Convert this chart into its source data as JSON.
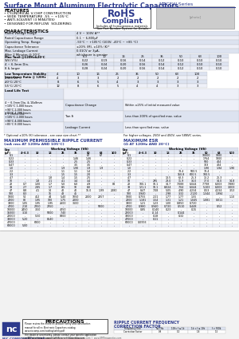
{
  "title_bold": "Surface Mount Aluminum Electrolytic Capacitors",
  "title_series": " NACEW Series",
  "bg_color": "#ffffff",
  "header_color": "#2d3a8c",
  "table_header_bg": "#c8d0e8",
  "border_color": "#999999",
  "features_title": "FEATURES",
  "features": [
    "• CYLINDRICAL V-CHIP CONSTRUCTION",
    "• WIDE TEMPERATURE -55 ~ +105°C",
    "• ANTI-SOLVENT (3 MINUTES)",
    "• DESIGNED FOR REFLOW  SOLDERING"
  ],
  "char_title": "CHARACTERISTICS",
  "char_rows": [
    [
      "Rated Voltage Range",
      "4 V ~ 100V A**"
    ],
    [
      "Rated Capacitance Range",
      "0.1 ~ 6,800μF"
    ],
    [
      "Operating Temp. Range",
      "-55°C ~ +105°C (100V: -40°C ~ +85 °C)"
    ],
    [
      "Capacitance Tolerance",
      "±20% (M), ±10% (K)*"
    ],
    [
      "Max. Leakage Current\nAfter 2 Minutes @ 20°C",
      "0.01CV or 3μA,\nwhichever is greater"
    ]
  ],
  "ripple_title": "MAXIMUM PERMISSIBLE RIPPLE CURRENT",
  "ripple_sub": "(mA rms AT 120Hz AND 105°C)",
  "esr_title": "MAXIMUM ESR",
  "esr_sub": "(Ω AT 120Hz AND 20°C)",
  "ripple_wv": [
    "4~6.3",
    "10",
    "16",
    "25",
    "35",
    "50",
    "63",
    "100"
  ],
  "esr_wv": [
    "4~6.3",
    "10",
    "16",
    "25",
    "35",
    "50",
    "63",
    "500"
  ],
  "ripple_data": [
    [
      "0.1",
      "-",
      "-",
      "-",
      "-",
      "-",
      "67",
      "67",
      "-"
    ],
    [
      "0.22",
      "-",
      "-",
      "-",
      "-",
      "1.46",
      "1.46",
      "-",
      "-"
    ],
    [
      "0.33",
      "-",
      "-",
      "-",
      "-",
      "2.5",
      "2.5",
      "-",
      "-"
    ],
    [
      "0.47",
      "-",
      "-",
      "-",
      "-",
      "3.5",
      "3.5",
      "-",
      "-"
    ],
    [
      "1.0",
      "-",
      "-",
      "-",
      "1.9",
      "1.90",
      "1.9",
      "1.9",
      "-"
    ],
    [
      "2.2",
      "-",
      "-",
      "-",
      "1.1",
      "1.1",
      "1.4",
      "-",
      "-"
    ],
    [
      "3.3",
      "-",
      "-",
      "-",
      "1.5",
      "1.5",
      "2.0",
      "-",
      "-"
    ],
    [
      "4.7",
      "-",
      "-",
      "1.8",
      "1.4",
      "1.5",
      "2.5",
      "-",
      "-"
    ],
    [
      "10",
      "-",
      "1.8",
      "2.1",
      "4.1",
      "3.4",
      "3.4",
      "-",
      "-"
    ],
    [
      "22",
      "0.7",
      "1.00",
      "1.7",
      "5.0",
      "6.0",
      "4.9",
      "-",
      "84"
    ],
    [
      "33",
      "2.7",
      "2.85",
      "1.7",
      "8.5",
      "10",
      "8.0",
      "-",
      "-"
    ],
    [
      "47",
      "8.8",
      "4.1",
      "14",
      "40",
      "40",
      "16.0",
      "1.99",
      "2080"
    ],
    [
      "100",
      "8.3",
      "-",
      "16",
      "48",
      "45",
      "-",
      "-",
      "-"
    ],
    [
      "1000",
      "54",
      "452",
      "44",
      "5.40",
      "1050",
      "2000",
      "2857",
      "-"
    ],
    [
      "2200",
      "80",
      "1.95",
      "100",
      "1.75",
      "2000",
      "-",
      "-",
      "-"
    ],
    [
      "3300",
      "1.05",
      "1.95",
      "1.95",
      "2600",
      "3600",
      "-",
      "-",
      "-"
    ],
    [
      "4700",
      "2.10",
      "2.350",
      "2350",
      "-",
      "-",
      "-",
      "5000",
      "-"
    ],
    [
      "10000",
      "2450",
      "3.50",
      "-",
      "4250",
      "-",
      "-",
      "-",
      "-"
    ],
    [
      "15000",
      "3.10",
      "-",
      "5000",
      "7.40",
      "-",
      "-",
      "-",
      "-"
    ],
    [
      "22000",
      "-",
      "5.50",
      "-",
      "8800",
      "-",
      "-",
      "-",
      "-"
    ],
    [
      "33000",
      "5.20",
      "-",
      "8640",
      "-",
      "-",
      "-",
      "-",
      "-"
    ],
    [
      "47000",
      "-",
      "6800",
      "-",
      "-",
      "-",
      "-",
      "-",
      "-"
    ],
    [
      "68000",
      "5.00",
      "-",
      "-",
      "-",
      "-",
      "-",
      "-",
      "-"
    ]
  ],
  "esr_data": [
    [
      "0.1",
      "-",
      "-",
      "-",
      "-",
      "-",
      "10000",
      "1000",
      "-"
    ],
    [
      "0.220.1",
      "-",
      "-",
      "-",
      "-",
      "-",
      "1764",
      "1000",
      "-"
    ],
    [
      "0.33",
      "-",
      "-",
      "-",
      "-",
      "-",
      "500",
      "404",
      "-"
    ],
    [
      "0.47",
      "-",
      "-",
      "-",
      "-",
      "-",
      "303",
      "424",
      "-"
    ],
    [
      "1.0",
      "-",
      "-",
      "-",
      "-",
      "-",
      "1.90",
      "1.94",
      "1.90"
    ],
    [
      "2.2",
      "-",
      "-",
      "-",
      "73.4",
      "500.5",
      "73.4",
      "-",
      "-"
    ],
    [
      "3.3",
      "-",
      "-",
      "-",
      "150.8",
      "600.5",
      "100.5",
      "-",
      "-"
    ],
    [
      "4.7",
      "-",
      "-",
      "13.5",
      "62.3",
      "25.3",
      "12.2",
      "25.3",
      "-"
    ],
    [
      "10",
      "-",
      "295",
      "23.0",
      "11.9",
      "14.0",
      "17.0",
      "14.0",
      "14.8"
    ],
    [
      "22",
      "100.1",
      "10.1",
      "14.7",
      "7.088",
      "6.044",
      "7.798",
      "6.003",
      "7.880"
    ],
    [
      "33",
      "121.1",
      "10.1",
      "8.024",
      "7.04",
      "6.044",
      "5.103",
      "6.003",
      "3.003"
    ],
    [
      "47",
      "8.47",
      "7.08",
      "5.05",
      "4.90",
      "4.234",
      "0.53",
      "4.234",
      "3.53"
    ],
    [
      "100",
      "3.940",
      "-",
      "2.98",
      "3.32",
      "2.120",
      "1.344",
      "1.994",
      "-"
    ],
    [
      "1000",
      "0.755",
      "2.21",
      "1.77",
      "1.77",
      "1.55",
      "-",
      "-",
      "1.10"
    ],
    [
      "2200",
      "1.181",
      "1.54",
      "1.31",
      "1.21",
      "1.045",
      "1.081",
      "0.011",
      "-"
    ],
    [
      "3300",
      "1.21",
      "1.23",
      "1.00",
      "0.850",
      "0.720",
      "-",
      "-",
      "-"
    ],
    [
      "4700",
      "0.980",
      "0.940",
      "0.720",
      "0.510",
      "0.448",
      "-",
      "0.52",
      "-"
    ],
    [
      "10000",
      "0.85",
      "0.140",
      "0.23",
      "-",
      "0.15",
      "-",
      "-",
      "-"
    ],
    [
      "22000",
      "-",
      "-0.14",
      "-",
      "0.144",
      "-",
      "-",
      "-",
      "-"
    ],
    [
      "33000",
      "-",
      "0.18",
      "-",
      "0.32",
      "-",
      "-",
      "-",
      "-"
    ],
    [
      "47000",
      "-",
      "0.11",
      "-",
      "-",
      "-",
      "-",
      "-",
      "-"
    ],
    [
      "68000",
      "0.0993",
      "-",
      "-",
      "-",
      "-",
      "-",
      "-",
      "-"
    ]
  ],
  "tan_voltages": [
    "6.3",
    "10",
    "16",
    "25",
    "35",
    "50",
    "63",
    "100"
  ],
  "tan_wv_pct": [
    "0.22",
    "0.19",
    "0.16",
    "0.14",
    "0.12",
    "0.10",
    "0.10",
    "0.10"
  ],
  "tan_463": [
    "0.26",
    "0.24",
    "0.20",
    "0.16",
    "0.14",
    "0.12",
    "0.10",
    "0.10"
  ],
  "tan_8plus": [
    "0.28",
    "0.24",
    "0.20",
    "0.16",
    "0.14",
    "0.12",
    "0.10",
    "0.10"
  ],
  "lt_rows": [
    [
      "W.V.(V%)",
      "4",
      "10",
      "16",
      "25",
      "35",
      "50",
      "63",
      "100"
    ],
    [
      "-25°C/-20°C",
      "4",
      "3",
      "3",
      "2",
      "2",
      "2",
      "2",
      "2"
    ],
    [
      "-40°C/-20°C",
      "8",
      "6",
      "5",
      "4",
      "3",
      "3",
      "3",
      "3"
    ],
    [
      "-55°C/-20°C",
      "12",
      "8",
      "6",
      "5",
      "4",
      "4",
      "3",
      "3"
    ]
  ],
  "precautions_title": "PRECAUTIONS",
  "freq_headers": [
    "Frequency (Hz)",
    "f≤ 1Hz",
    "100< f ≤ 1k",
    "1k < f ≤ 10k",
    "f > 500k"
  ],
  "freq_factors": [
    "Correction Factor",
    "0.8",
    "1.0",
    "1.8",
    "1.5"
  ]
}
